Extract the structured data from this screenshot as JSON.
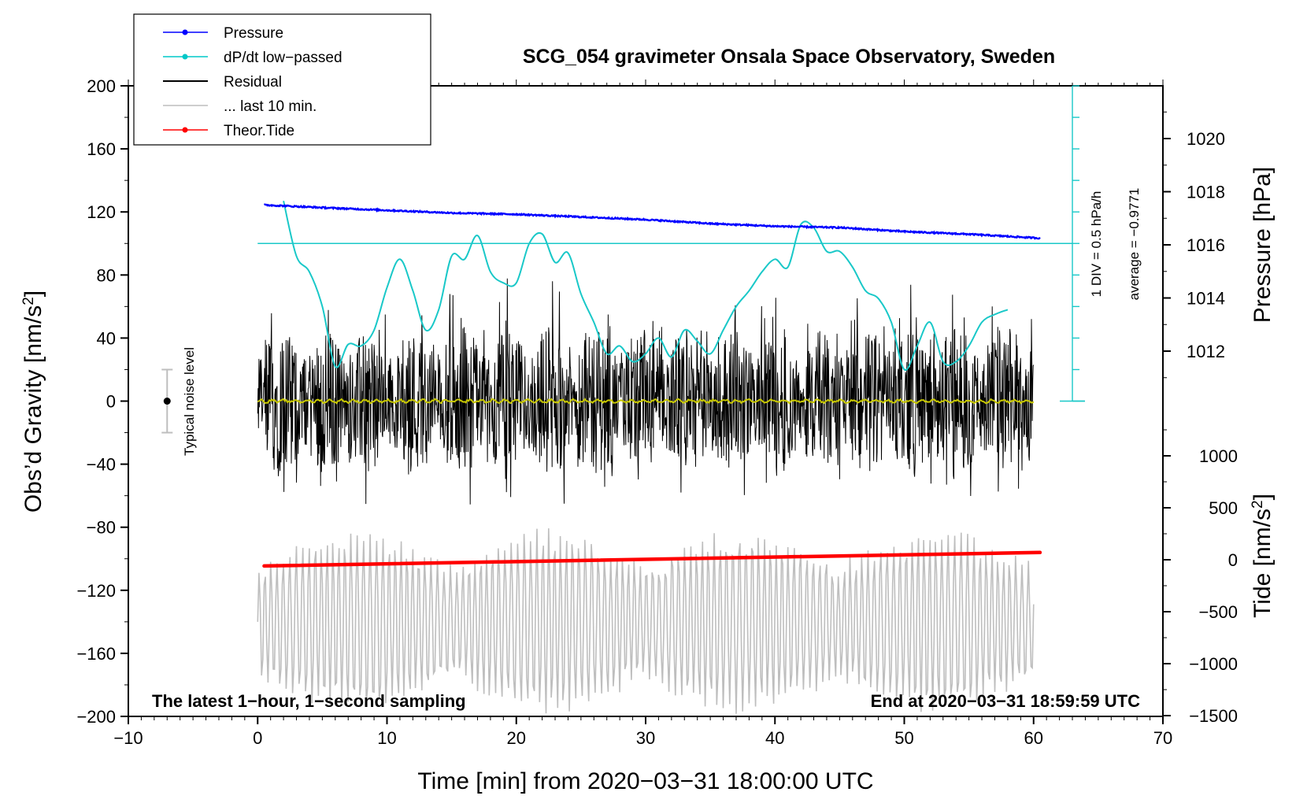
{
  "chart_data": {
    "type": "line",
    "title": "SCG_054 gravimeter Onsala Space Observatory, Sweden",
    "xlabel": "Time [min] from 2020−03−31 18:00:00 UTC",
    "ylabel_left_prefix": "Obs’d Gravity [nm/s",
    "ylabel_left_sup": "2",
    "ylabel_left_suffix": "]",
    "ylabel_right_top": "Pressure [hPa]",
    "ylabel_right_bottom_prefix": "Tide [nm/s",
    "ylabel_right_bottom_sup": "2",
    "ylabel_right_bottom_suffix": "]",
    "xlim": [
      -10,
      70
    ],
    "ylim": [
      -200,
      200
    ],
    "pressure_ylim": [
      1010,
      1022
    ],
    "tide_ylim": [
      -1500,
      1500
    ],
    "x_ticks": [
      "−10",
      "0",
      "10",
      "20",
      "30",
      "40",
      "50",
      "60",
      "70"
    ],
    "x_tick_values": [
      -10,
      0,
      10,
      20,
      30,
      40,
      50,
      60,
      70
    ],
    "y_ticks": [
      "200",
      "160",
      "120",
      "80",
      "40",
      "0",
      "−40",
      "−80",
      "−120",
      "−160",
      "−200"
    ],
    "y_tick_values": [
      200,
      160,
      120,
      80,
      40,
      0,
      -40,
      -80,
      -120,
      -160,
      -200
    ],
    "pressure_ticks": [
      "1020",
      "1018",
      "1016",
      "1014",
      "1012"
    ],
    "pressure_tick_values": [
      1020,
      1018,
      1016,
      1014,
      1012
    ],
    "tide_ticks": [
      "1000",
      "500",
      "0",
      "−500",
      "−1000",
      "−1500"
    ],
    "tide_tick_values": [
      1000,
      500,
      0,
      -500,
      -1000,
      -1500
    ],
    "legend": [
      {
        "label": "Pressure",
        "color": "#0000ff",
        "marker": true
      },
      {
        "label": "dP/dt low−passed",
        "color": "#00c8c8",
        "marker": true
      },
      {
        "label": "Residual",
        "color": "#000000",
        "marker": false
      },
      {
        "label": "... last 10 min.",
        "color": "#bebebe",
        "marker": false
      },
      {
        "label": "Theor.Tide",
        "color": "#ff0000",
        "marker": true
      }
    ],
    "colors": {
      "pressure": "#0000ff",
      "dpdt": "#19c8c8",
      "residual": "#000000",
      "last10": "#bebebe",
      "tide": "#ff0000",
      "residual_smooth": "#c8c800"
    },
    "series": [
      {
        "name": "Pressure",
        "unit": "hPa",
        "axis": "pressure",
        "x": [
          0.5,
          5,
          10,
          15,
          20,
          25,
          30,
          35,
          40,
          45,
          50,
          55,
          60.5
        ],
        "values": [
          1017.5,
          1017.4,
          1017.3,
          1017.2,
          1017.15,
          1017.05,
          1016.95,
          1016.8,
          1016.7,
          1016.65,
          1016.5,
          1016.4,
          1016.25
        ]
      },
      {
        "name": "dP/dt low-passed",
        "unit": "gravity-axis nm/s2 (0 = zero rate, 1 DIV = 0.5 hPa/h)",
        "axis": "gravity",
        "x": [
          2,
          3,
          4,
          5,
          6,
          7,
          8,
          9,
          10,
          11,
          12,
          13,
          14,
          15,
          16,
          17,
          18,
          19,
          20,
          21,
          22,
          23,
          24,
          25,
          26,
          27,
          28,
          29,
          30,
          31,
          32,
          33,
          34,
          35,
          36,
          37,
          38,
          39,
          40,
          41,
          42,
          43,
          44,
          45,
          46,
          47,
          48,
          49,
          50,
          51,
          52,
          53,
          54,
          55,
          56,
          57,
          58
        ],
        "values": [
          127,
          92,
          82,
          60,
          22,
          36,
          35,
          45,
          72,
          90,
          70,
          45,
          58,
          92,
          90,
          105,
          82,
          75,
          75,
          100,
          106,
          88,
          94,
          68,
          50,
          30,
          35,
          25,
          30,
          40,
          28,
          45,
          38,
          30,
          45,
          60,
          70,
          82,
          90,
          85,
          112,
          110,
          95,
          95,
          85,
          70,
          65,
          50,
          20,
          35,
          50,
          25,
          25,
          35,
          50,
          55,
          58
        ]
      },
      {
        "name": "Residual",
        "unit": "nm/s2",
        "axis": "gravity",
        "x_range": [
          0,
          60
        ],
        "envelope": [
          -60,
          60
        ]
      },
      {
        "name": "... last 10 min.",
        "unit": "nm/s2",
        "axis": "gravity",
        "x_range": [
          0,
          60
        ],
        "range": [
          -200,
          -80
        ]
      },
      {
        "name": "Theor.Tide",
        "unit": "nm/s2",
        "axis": "tide",
        "x": [
          0.5,
          60.5
        ],
        "values": [
          -60,
          70
        ]
      }
    ],
    "dpdt_scale_label": "1 DIV = 0.5 hPa/h",
    "dpdt_average_label": "average = −0.9771",
    "noise_label": "Typical noise level",
    "noise_bar": {
      "x": -7,
      "center": 0,
      "half_range": 20
    },
    "annotation_left": "The latest 1−hour, 1−second sampling",
    "annotation_right": "End at 2020−03−31 18:59:59 UTC"
  }
}
